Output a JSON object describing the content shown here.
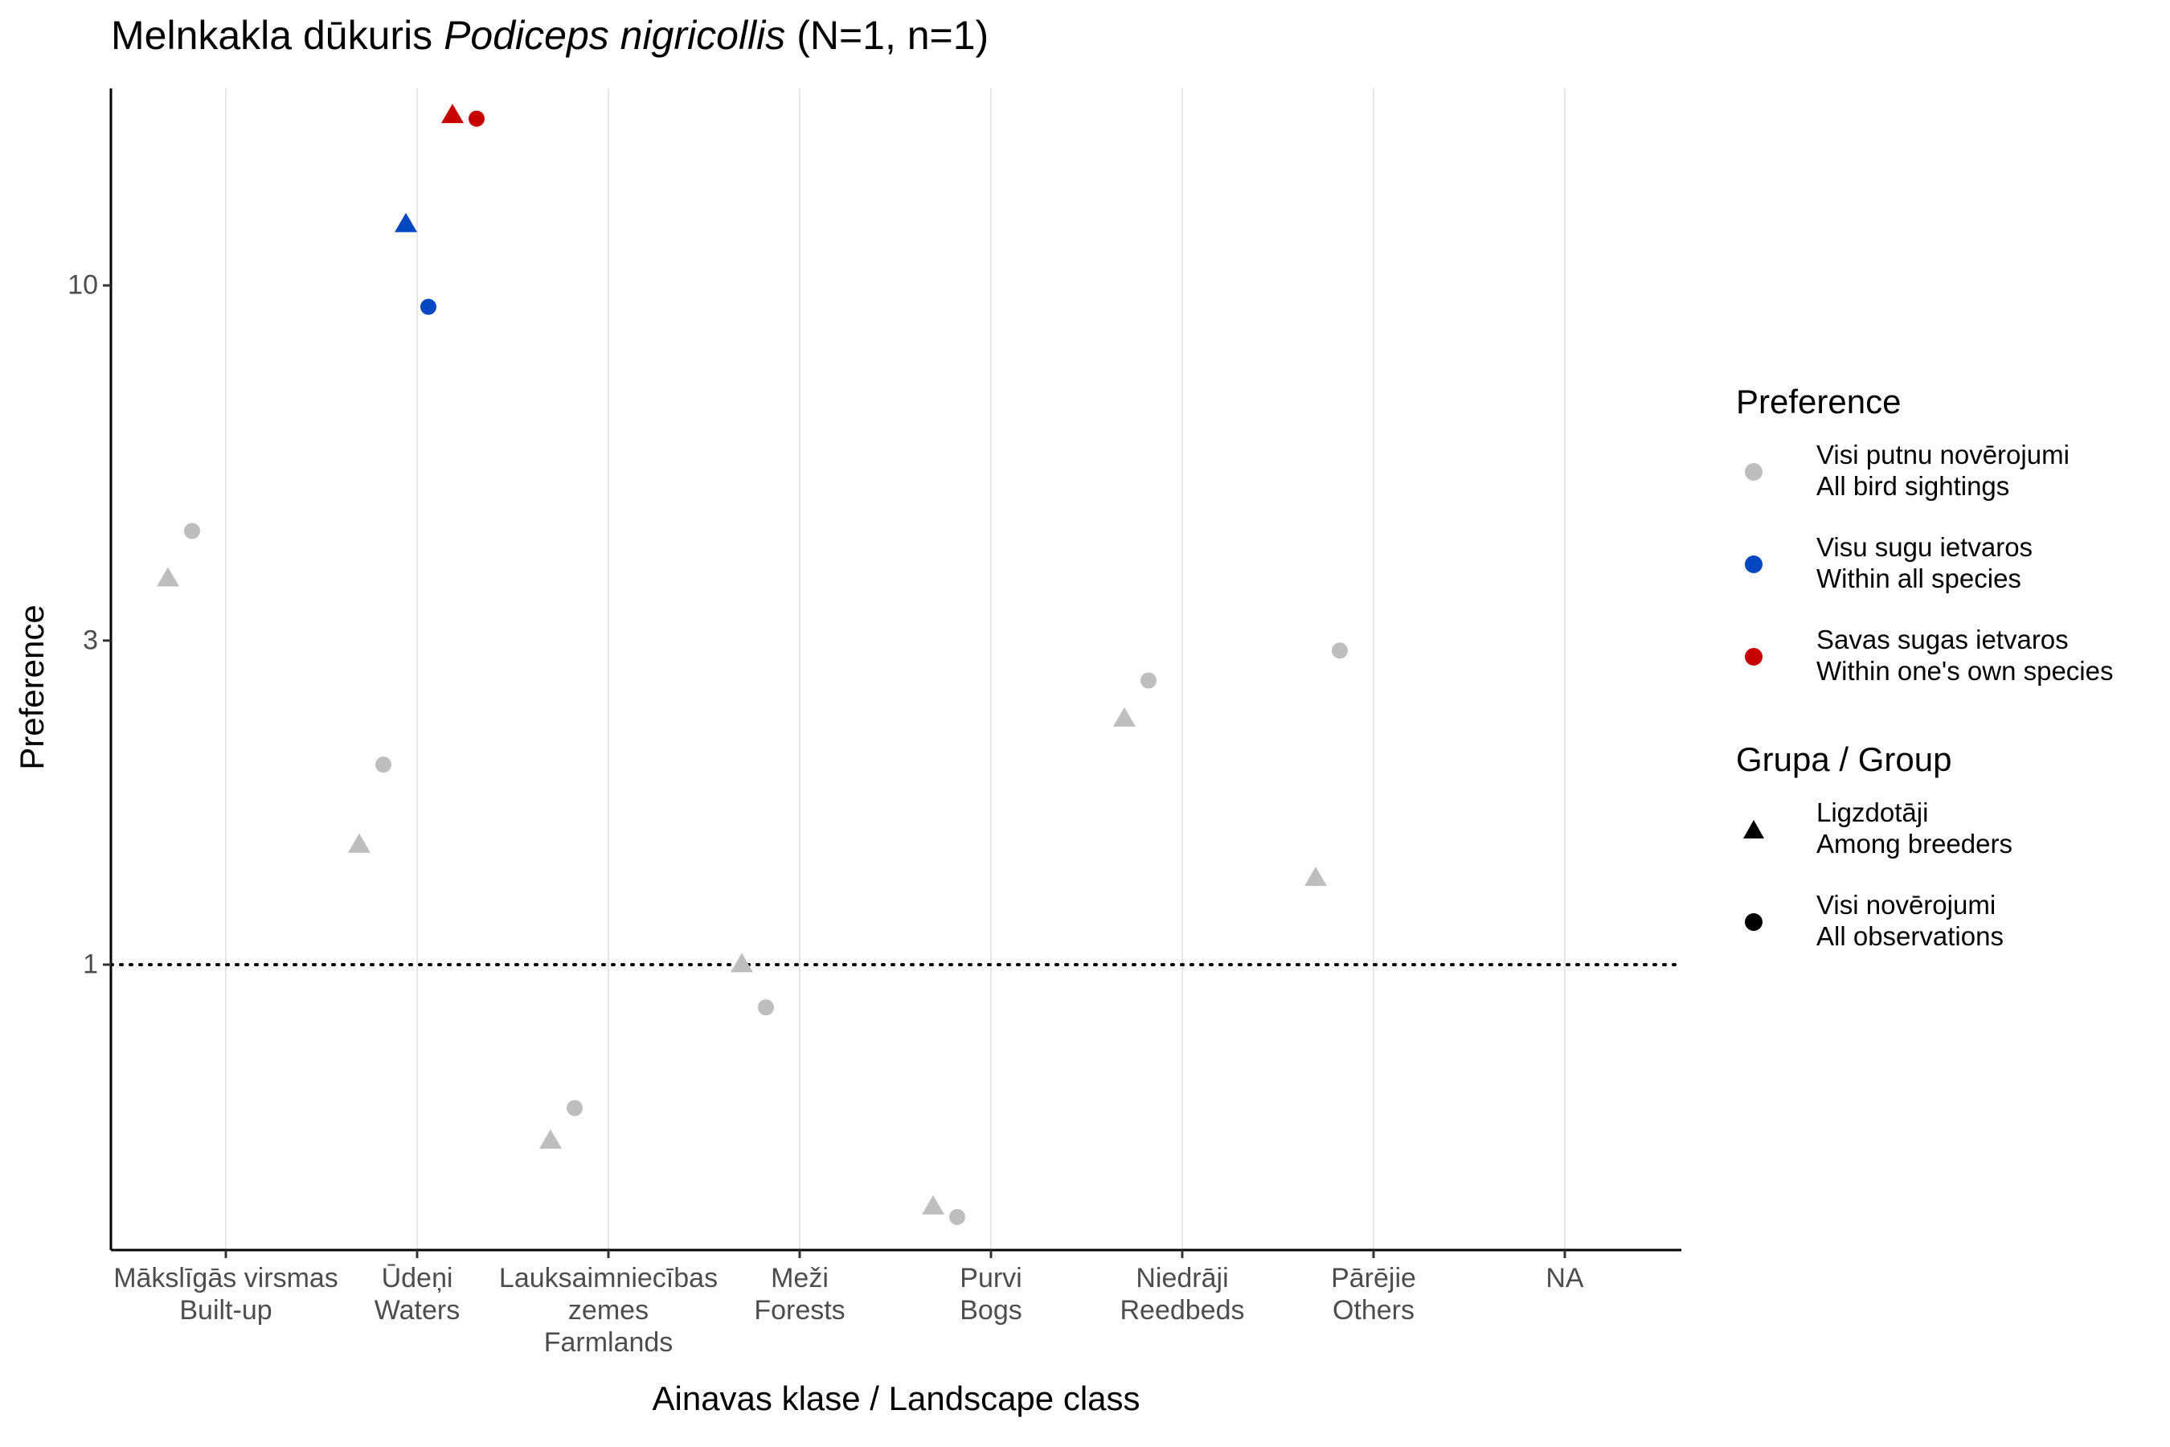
{
  "title": {
    "common": "Melnkakla dūkuris",
    "species": "Podiceps nigricollis",
    "counts": "(N=1, n=1)"
  },
  "chart_data": {
    "type": "scatter",
    "xlabel": "Ainavas klase / Landscape class",
    "ylabel": "Preference",
    "y_scale": "log",
    "ylim": [
      0.38,
      19.5
    ],
    "y_ticks": [
      {
        "value": 1,
        "label": "1"
      },
      {
        "value": 3,
        "label": "3"
      },
      {
        "value": 10,
        "label": "10"
      }
    ],
    "reference_line": {
      "y": 1,
      "style": "dotted"
    },
    "categories": [
      {
        "lv": "Mākslīgās virsmas",
        "en": "Built-up"
      },
      {
        "lv": "Ūdeņi",
        "en": "Waters"
      },
      {
        "lv": "Lauksaimniecības zemes",
        "en": "Farmlands"
      },
      {
        "lv": "Meži",
        "en": "Forests"
      },
      {
        "lv": "Purvi",
        "en": "Bogs"
      },
      {
        "lv": "Niedrāji",
        "en": "Reedbeds"
      },
      {
        "lv": "Pārējie",
        "en": "Others"
      },
      {
        "lv": "NA",
        "en": ""
      }
    ],
    "series": [
      {
        "preference": "all_sightings",
        "group": "breeders",
        "color": "#bebebe",
        "shape": "triangle",
        "values": [
          3.7,
          1.5,
          0.55,
          1.0,
          0.44,
          2.3,
          1.34,
          null
        ]
      },
      {
        "preference": "all_sightings",
        "group": "all_observations",
        "color": "#bebebe",
        "shape": "circle",
        "values": [
          4.35,
          1.97,
          0.615,
          0.865,
          0.425,
          2.62,
          2.9,
          null
        ]
      },
      {
        "preference": "within_all_species",
        "group": "breeders",
        "color": "#0047c2",
        "shape": "triangle",
        "values": [
          null,
          12.3,
          null,
          null,
          null,
          null,
          null,
          null
        ]
      },
      {
        "preference": "within_all_species",
        "group": "all_observations",
        "color": "#0047c2",
        "shape": "circle",
        "values": [
          null,
          9.3,
          null,
          null,
          null,
          null,
          null,
          null
        ]
      },
      {
        "preference": "within_own_species",
        "group": "breeders",
        "color": "#c80000",
        "shape": "triangle",
        "values": [
          null,
          17.8,
          null,
          null,
          null,
          null,
          null,
          null
        ]
      },
      {
        "preference": "within_own_species",
        "group": "all_observations",
        "color": "#c80000",
        "shape": "circle",
        "values": [
          null,
          17.6,
          null,
          null,
          null,
          null,
          null,
          null
        ]
      }
    ],
    "legend": {
      "placement": "right",
      "preference": {
        "title": "Preference",
        "items": [
          {
            "line1": "Visi putnu novērojumi",
            "line2": "All bird sightings",
            "color": "#bebebe"
          },
          {
            "line1": "Visu sugu ietvaros",
            "line2": "Within all species",
            "color": "#0047c2"
          },
          {
            "line1": "Savas sugas ietvaros",
            "line2": "Within one's own species",
            "color": "#c80000"
          }
        ]
      },
      "group": {
        "title": "Grupa / Group",
        "items": [
          {
            "line1": "Ligzdotāji",
            "line2": "Among breeders",
            "shape": "triangle"
          },
          {
            "line1": "Visi novērojumi",
            "line2": "All observations",
            "shape": "circle"
          }
        ]
      }
    },
    "grid": "vertical major only"
  }
}
